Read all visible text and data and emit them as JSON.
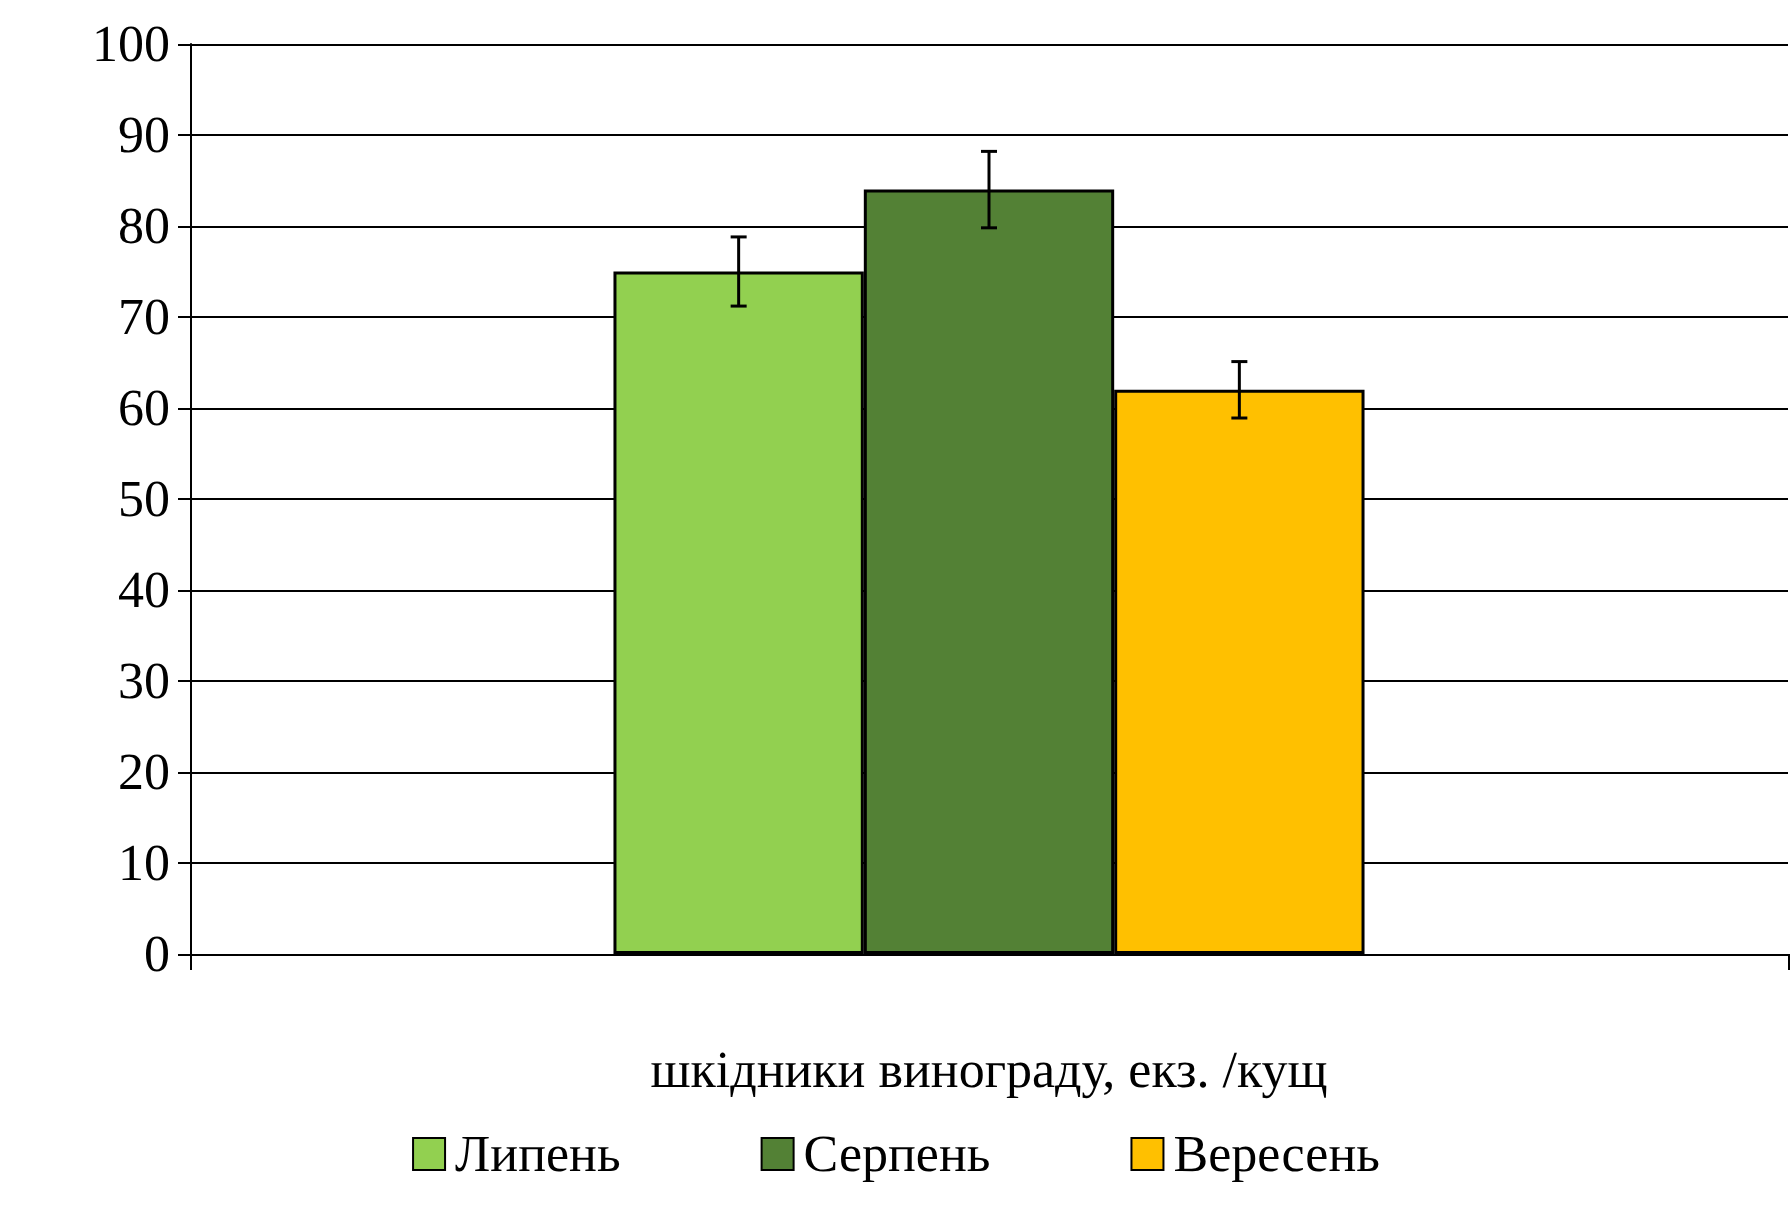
{
  "chart_data": {
    "type": "bar",
    "xlabel": "шкідники винограду, екз. /кущ",
    "categories": [
      null
    ],
    "series": [
      {
        "name": "Липень",
        "color": "#92d050",
        "values": [
          75
        ],
        "errors": [
          3.8
        ]
      },
      {
        "name": "Серпень",
        "color": "#538135",
        "values": [
          84
        ],
        "errors": [
          4.2
        ]
      },
      {
        "name": "Вересень",
        "color": "#ffc000",
        "values": [
          62
        ],
        "errors": [
          3.1
        ]
      }
    ],
    "ylim": [
      0,
      100
    ],
    "yticks": [
      0,
      10,
      20,
      30,
      40,
      50,
      60,
      70,
      80,
      90,
      100
    ],
    "grid": "y",
    "legend": "bottom"
  }
}
